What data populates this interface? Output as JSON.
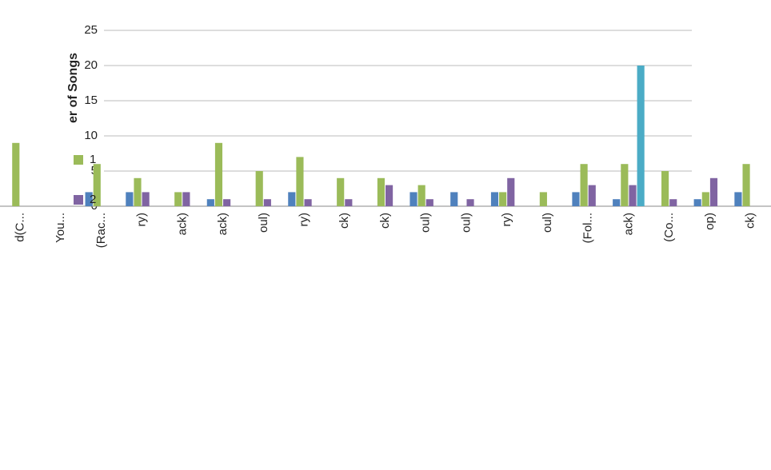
{
  "chart_data": {
    "type": "bar",
    "y_label": "er of Songs",
    "categories": [
      "d(C...",
      "You...",
      "(Rac...",
      "ry)",
      "ack)",
      "ack)",
      "oul)",
      "ry)",
      "ck)",
      "ck)",
      "oul)",
      "oul)",
      "ry)",
      "oul)",
      "(Fol...",
      "ack)",
      "(Co...",
      "op)",
      "ck)"
    ],
    "series": [
      {
        "color": "#4f81bd",
        "values": [
          0,
          0,
          2,
          2,
          0,
          1,
          0,
          2,
          0,
          0,
          2,
          2,
          2,
          0,
          2,
          1,
          0,
          1,
          2
        ]
      },
      {
        "name": "1",
        "color": "#9bbb59",
        "values": [
          9,
          0,
          6,
          4,
          2,
          9,
          5,
          7,
          4,
          4,
          3,
          0,
          2,
          2,
          6,
          6,
          5,
          2,
          6
        ]
      },
      {
        "name": "2",
        "color": "#8064a2",
        "values": [
          0,
          0,
          0,
          2,
          2,
          1,
          1,
          1,
          1,
          3,
          1,
          1,
          4,
          0,
          3,
          3,
          1,
          4,
          0
        ]
      },
      {
        "color": "#4bacc6",
        "values": [
          null,
          null,
          null,
          null,
          null,
          null,
          null,
          null,
          null,
          null,
          null,
          null,
          null,
          null,
          null,
          20,
          null,
          null,
          null
        ]
      }
    ],
    "ylim": [
      0,
      25
    ],
    "yticks": [
      0,
      5,
      10,
      15,
      20,
      25
    ],
    "grid": true
  }
}
